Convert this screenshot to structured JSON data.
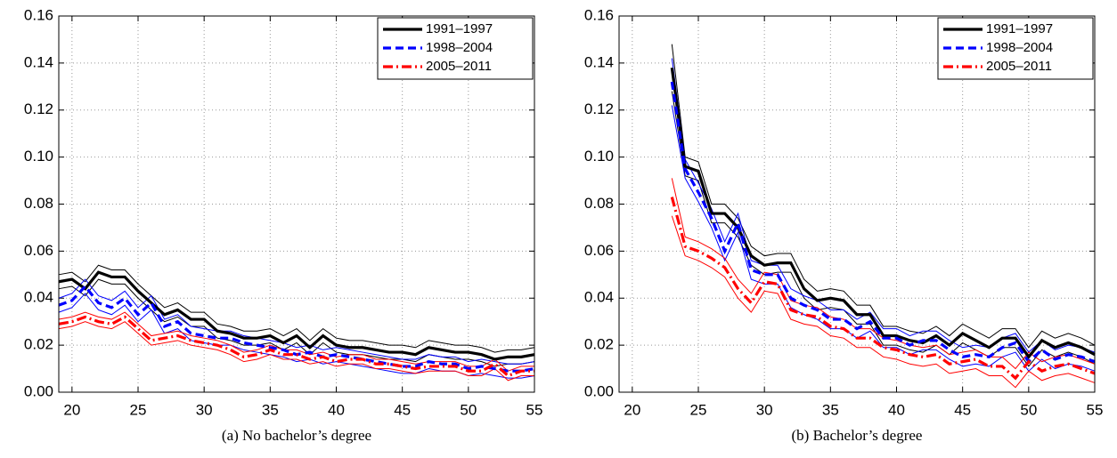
{
  "chart_data": [
    {
      "type": "line",
      "caption": "(a) No bachelor’s degree",
      "x": [
        19,
        20,
        21,
        22,
        23,
        24,
        25,
        26,
        27,
        28,
        29,
        30,
        31,
        32,
        33,
        34,
        35,
        36,
        37,
        38,
        39,
        40,
        41,
        42,
        43,
        44,
        45,
        46,
        47,
        48,
        49,
        50,
        51,
        52,
        53,
        54,
        55
      ],
      "xlim": [
        19,
        55
      ],
      "xticks": [
        20,
        25,
        30,
        35,
        40,
        45,
        50,
        55
      ],
      "ylim": [
        0,
        0.16
      ],
      "yticks": [
        {
          "value": 0,
          "label": "0.00"
        },
        {
          "value": 0.02,
          "label": "0.02"
        },
        {
          "value": 0.04,
          "label": "0.04"
        },
        {
          "value": 0.06,
          "label": "0.06"
        },
        {
          "value": 0.08,
          "label": "0.08"
        },
        {
          "value": 0.1,
          "label": "0.10"
        },
        {
          "value": 0.12,
          "label": "0.12"
        },
        {
          "value": 0.14,
          "label": "0.14"
        },
        {
          "value": 0.16,
          "label": "0.16"
        }
      ],
      "grid": true,
      "legend": "upper right",
      "series": [
        {
          "name": "1991–1997",
          "color": "#000000",
          "linestyle": "solid",
          "values": [
            0.047,
            0.048,
            0.044,
            0.051,
            0.049,
            0.049,
            0.043,
            0.038,
            0.033,
            0.035,
            0.031,
            0.031,
            0.026,
            0.025,
            0.023,
            0.023,
            0.024,
            0.021,
            0.024,
            0.019,
            0.024,
            0.02,
            0.019,
            0.019,
            0.018,
            0.017,
            0.017,
            0.016,
            0.019,
            0.018,
            0.017,
            0.017,
            0.016,
            0.014,
            0.015,
            0.015,
            0.016
          ],
          "lower": [
            0.044,
            0.045,
            0.041,
            0.048,
            0.046,
            0.046,
            0.04,
            0.035,
            0.03,
            0.032,
            0.028,
            0.028,
            0.023,
            0.022,
            0.02,
            0.02,
            0.021,
            0.018,
            0.021,
            0.016,
            0.021,
            0.017,
            0.016,
            0.016,
            0.015,
            0.014,
            0.014,
            0.013,
            0.016,
            0.015,
            0.014,
            0.014,
            0.013,
            0.011,
            0.012,
            0.012,
            0.013
          ],
          "upper": [
            0.05,
            0.051,
            0.047,
            0.054,
            0.052,
            0.052,
            0.046,
            0.041,
            0.036,
            0.038,
            0.034,
            0.034,
            0.029,
            0.028,
            0.026,
            0.026,
            0.027,
            0.024,
            0.027,
            0.022,
            0.027,
            0.023,
            0.022,
            0.022,
            0.021,
            0.02,
            0.02,
            0.019,
            0.022,
            0.021,
            0.02,
            0.02,
            0.019,
            0.017,
            0.018,
            0.018,
            0.019
          ]
        },
        {
          "name": "1998–2004",
          "color": "#0000ff",
          "linestyle": "dashed",
          "values": [
            0.037,
            0.039,
            0.045,
            0.038,
            0.036,
            0.04,
            0.033,
            0.038,
            0.028,
            0.03,
            0.025,
            0.024,
            0.023,
            0.023,
            0.021,
            0.02,
            0.019,
            0.018,
            0.016,
            0.017,
            0.015,
            0.016,
            0.015,
            0.014,
            0.013,
            0.012,
            0.011,
            0.011,
            0.013,
            0.012,
            0.012,
            0.01,
            0.011,
            0.01,
            0.009,
            0.009,
            0.01
          ],
          "lower": [
            0.034,
            0.036,
            0.042,
            0.035,
            0.033,
            0.037,
            0.03,
            0.035,
            0.025,
            0.027,
            0.022,
            0.021,
            0.02,
            0.02,
            0.018,
            0.017,
            0.016,
            0.015,
            0.013,
            0.014,
            0.012,
            0.013,
            0.012,
            0.011,
            0.01,
            0.009,
            0.008,
            0.008,
            0.01,
            0.009,
            0.009,
            0.007,
            0.008,
            0.007,
            0.006,
            0.006,
            0.007
          ],
          "upper": [
            0.04,
            0.042,
            0.048,
            0.041,
            0.039,
            0.043,
            0.036,
            0.041,
            0.031,
            0.033,
            0.028,
            0.027,
            0.026,
            0.026,
            0.024,
            0.023,
            0.022,
            0.021,
            0.019,
            0.02,
            0.018,
            0.019,
            0.018,
            0.017,
            0.016,
            0.015,
            0.014,
            0.014,
            0.016,
            0.015,
            0.015,
            0.013,
            0.014,
            0.013,
            0.012,
            0.012,
            0.013
          ]
        },
        {
          "name": "2005–2011",
          "color": "#ff0000",
          "linestyle": "dashdot",
          "values": [
            0.029,
            0.03,
            0.032,
            0.03,
            0.029,
            0.032,
            0.027,
            0.022,
            0.023,
            0.024,
            0.022,
            0.021,
            0.02,
            0.018,
            0.015,
            0.016,
            0.018,
            0.016,
            0.016,
            0.014,
            0.015,
            0.013,
            0.014,
            0.014,
            0.012,
            0.012,
            0.011,
            0.01,
            0.011,
            0.011,
            0.011,
            0.009,
            0.009,
            0.012,
            0.007,
            0.009,
            0.009
          ],
          "lower": [
            0.027,
            0.028,
            0.03,
            0.028,
            0.027,
            0.03,
            0.025,
            0.02,
            0.021,
            0.022,
            0.02,
            0.019,
            0.018,
            0.016,
            0.013,
            0.014,
            0.016,
            0.014,
            0.014,
            0.012,
            0.013,
            0.011,
            0.012,
            0.012,
            0.01,
            0.01,
            0.009,
            0.008,
            0.009,
            0.009,
            0.009,
            0.007,
            0.007,
            0.01,
            0.005,
            0.007,
            0.007
          ],
          "upper": [
            0.031,
            0.032,
            0.034,
            0.032,
            0.031,
            0.034,
            0.029,
            0.024,
            0.025,
            0.026,
            0.024,
            0.023,
            0.022,
            0.02,
            0.017,
            0.018,
            0.02,
            0.018,
            0.018,
            0.016,
            0.017,
            0.015,
            0.016,
            0.016,
            0.014,
            0.014,
            0.013,
            0.012,
            0.013,
            0.013,
            0.013,
            0.011,
            0.011,
            0.014,
            0.009,
            0.011,
            0.011
          ]
        }
      ]
    },
    {
      "type": "line",
      "caption": "(b) Bachelor’s degree",
      "x": [
        23,
        24,
        25,
        26,
        27,
        28,
        29,
        30,
        31,
        32,
        33,
        34,
        35,
        36,
        37,
        38,
        39,
        40,
        41,
        42,
        43,
        44,
        45,
        46,
        47,
        48,
        49,
        50,
        51,
        52,
        53,
        54,
        55
      ],
      "xlim": [
        19,
        55
      ],
      "xticks": [
        20,
        25,
        30,
        35,
        40,
        45,
        50,
        55
      ],
      "ylim": [
        0,
        0.16
      ],
      "yticks": [
        {
          "value": 0,
          "label": "0.00"
        },
        {
          "value": 0.02,
          "label": "0.02"
        },
        {
          "value": 0.04,
          "label": "0.04"
        },
        {
          "value": 0.06,
          "label": "0.06"
        },
        {
          "value": 0.08,
          "label": "0.08"
        },
        {
          "value": 0.1,
          "label": "0.10"
        },
        {
          "value": 0.12,
          "label": "0.12"
        },
        {
          "value": 0.14,
          "label": "0.14"
        },
        {
          "value": 0.16,
          "label": "0.16"
        }
      ],
      "grid": true,
      "legend": "upper right",
      "series": [
        {
          "name": "1991–1997",
          "color": "#000000",
          "linestyle": "solid",
          "values": [
            0.138,
            0.096,
            0.094,
            0.076,
            0.076,
            0.07,
            0.058,
            0.054,
            0.055,
            0.055,
            0.044,
            0.039,
            0.04,
            0.039,
            0.033,
            0.033,
            0.024,
            0.024,
            0.022,
            0.021,
            0.024,
            0.02,
            0.025,
            0.022,
            0.019,
            0.023,
            0.023,
            0.015,
            0.022,
            0.019,
            0.021,
            0.019,
            0.016
          ],
          "lower": [
            0.128,
            0.092,
            0.09,
            0.072,
            0.072,
            0.066,
            0.054,
            0.05,
            0.051,
            0.051,
            0.04,
            0.035,
            0.036,
            0.035,
            0.029,
            0.029,
            0.02,
            0.02,
            0.018,
            0.017,
            0.02,
            0.016,
            0.021,
            0.018,
            0.015,
            0.019,
            0.019,
            0.011,
            0.018,
            0.015,
            0.017,
            0.015,
            0.012
          ],
          "upper": [
            0.148,
            0.1,
            0.098,
            0.08,
            0.08,
            0.074,
            0.062,
            0.058,
            0.059,
            0.059,
            0.048,
            0.043,
            0.044,
            0.043,
            0.037,
            0.037,
            0.028,
            0.028,
            0.026,
            0.025,
            0.028,
            0.024,
            0.029,
            0.026,
            0.023,
            0.027,
            0.027,
            0.019,
            0.026,
            0.023,
            0.025,
            0.023,
            0.02
          ]
        },
        {
          "name": "1998–2004",
          "color": "#0000ff",
          "linestyle": "dashed",
          "values": [
            0.132,
            0.095,
            0.085,
            0.074,
            0.06,
            0.072,
            0.052,
            0.05,
            0.05,
            0.04,
            0.037,
            0.035,
            0.031,
            0.031,
            0.027,
            0.03,
            0.023,
            0.023,
            0.02,
            0.022,
            0.022,
            0.018,
            0.015,
            0.016,
            0.015,
            0.019,
            0.021,
            0.013,
            0.018,
            0.014,
            0.016,
            0.015,
            0.013
          ],
          "lower": [
            0.122,
            0.091,
            0.081,
            0.07,
            0.056,
            0.068,
            0.048,
            0.046,
            0.046,
            0.036,
            0.033,
            0.031,
            0.027,
            0.027,
            0.023,
            0.026,
            0.019,
            0.019,
            0.016,
            0.018,
            0.018,
            0.014,
            0.011,
            0.012,
            0.011,
            0.015,
            0.017,
            0.009,
            0.014,
            0.01,
            0.012,
            0.011,
            0.009
          ],
          "upper": [
            0.142,
            0.099,
            0.089,
            0.078,
            0.064,
            0.076,
            0.056,
            0.054,
            0.054,
            0.044,
            0.041,
            0.039,
            0.035,
            0.035,
            0.031,
            0.034,
            0.027,
            0.027,
            0.024,
            0.026,
            0.026,
            0.022,
            0.019,
            0.02,
            0.019,
            0.023,
            0.025,
            0.017,
            0.022,
            0.018,
            0.02,
            0.019,
            0.017
          ]
        },
        {
          "name": "2005–2011",
          "color": "#ff0000",
          "linestyle": "dashdot",
          "values": [
            0.083,
            0.062,
            0.06,
            0.057,
            0.053,
            0.044,
            0.038,
            0.047,
            0.046,
            0.035,
            0.033,
            0.032,
            0.028,
            0.027,
            0.023,
            0.023,
            0.019,
            0.018,
            0.016,
            0.015,
            0.016,
            0.012,
            0.013,
            0.014,
            0.011,
            0.011,
            0.006,
            0.013,
            0.009,
            0.011,
            0.012,
            0.01,
            0.008
          ],
          "lower": [
            0.075,
            0.058,
            0.056,
            0.053,
            0.049,
            0.04,
            0.034,
            0.043,
            0.042,
            0.031,
            0.029,
            0.028,
            0.024,
            0.023,
            0.019,
            0.019,
            0.015,
            0.014,
            0.012,
            0.011,
            0.012,
            0.008,
            0.009,
            0.01,
            0.007,
            0.007,
            0.002,
            0.009,
            0.005,
            0.007,
            0.008,
            0.006,
            0.004
          ],
          "upper": [
            0.091,
            0.066,
            0.064,
            0.061,
            0.057,
            0.048,
            0.042,
            0.051,
            0.05,
            0.039,
            0.037,
            0.036,
            0.032,
            0.031,
            0.027,
            0.027,
            0.023,
            0.022,
            0.02,
            0.019,
            0.02,
            0.016,
            0.017,
            0.018,
            0.015,
            0.015,
            0.01,
            0.017,
            0.013,
            0.015,
            0.016,
            0.014,
            0.012
          ]
        }
      ]
    }
  ]
}
